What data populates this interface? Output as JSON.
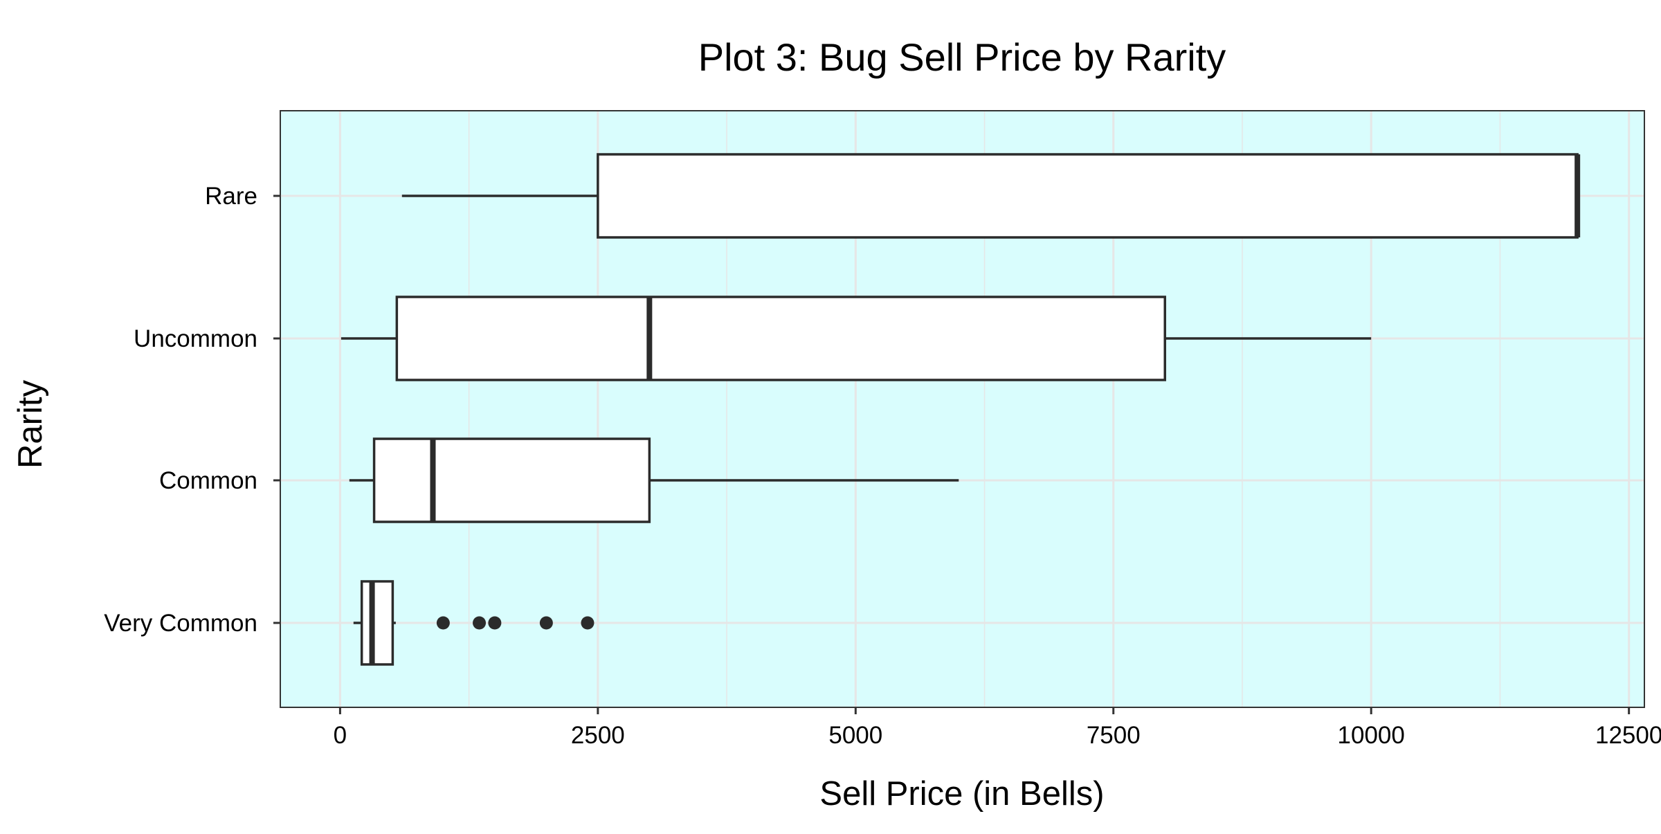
{
  "chart_data": {
    "type": "boxplot",
    "title": "Plot 3: Bug Sell Price by Rarity",
    "xlabel": "Sell Price (in Bells)",
    "ylabel": "Rarity",
    "orientation": "horizontal",
    "xlim": [
      -580,
      12650
    ],
    "xticks": [
      0,
      2500,
      5000,
      7500,
      10000,
      12500
    ],
    "xtick_labels": [
      "0",
      "2500",
      "5000",
      "7500",
      "10000",
      "12500"
    ],
    "x_minor_gridlines": [
      1250,
      3750,
      6250,
      8750,
      11250
    ],
    "categories": [
      "Rare",
      "Uncommon",
      "Common",
      "Very Common"
    ],
    "grid": true,
    "colors": {
      "panel_background": "#d9fdfd",
      "grid": "#e6e6e6",
      "box_fill": "#ffffff",
      "box_stroke": "#2b2b2b",
      "outlier": "#2b2b2b"
    },
    "series": [
      {
        "category": "Rare",
        "whisker_low": 600,
        "q1": 2500,
        "median": 12000,
        "q3": 12000,
        "whisker_high": 12000,
        "outliers": []
      },
      {
        "category": "Uncommon",
        "whisker_low": 10,
        "q1": 550,
        "median": 3000,
        "q3": 8000,
        "whisker_high": 10000,
        "outliers": []
      },
      {
        "category": "Common",
        "whisker_low": 90,
        "q1": 330,
        "median": 900,
        "q3": 3000,
        "whisker_high": 6000,
        "outliers": []
      },
      {
        "category": "Very Common",
        "whisker_low": 130,
        "q1": 210,
        "median": 310,
        "q3": 510,
        "whisker_high": 540,
        "outliers": [
          1000,
          1350,
          1500,
          2000,
          2400
        ]
      }
    ]
  }
}
